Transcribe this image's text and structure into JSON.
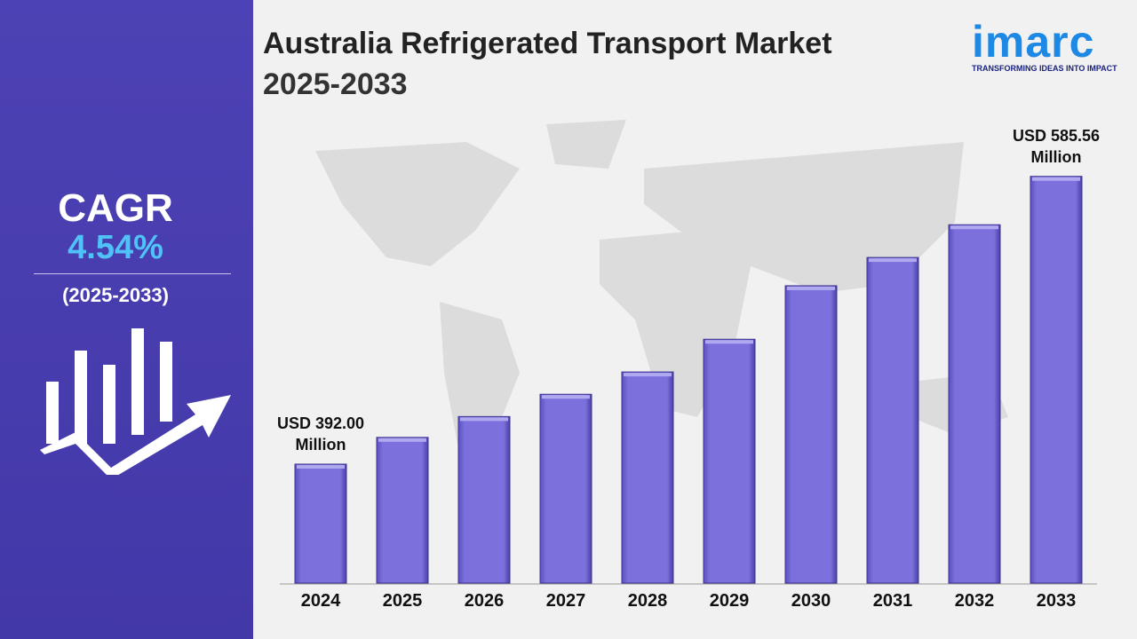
{
  "chart_data": {
    "type": "bar",
    "title": "Australia Refrigerated Transport Market",
    "subtitle": "2025-2033",
    "categories": [
      "2024",
      "2025",
      "2026",
      "2027",
      "2028",
      "2029",
      "2030",
      "2031",
      "2032",
      "2033"
    ],
    "values": [
      392.0,
      410,
      424,
      439,
      454,
      476,
      512,
      531,
      553,
      585.56
    ],
    "value_labels": [
      "USD 392.00 Million",
      null,
      null,
      null,
      null,
      null,
      null,
      null,
      null,
      "USD 585.56 Million"
    ],
    "color": "#7b70dc",
    "ylim": [
      312,
      620
    ]
  },
  "sidebar": {
    "label": "CAGR",
    "value": "4.54%",
    "period": "(2025-2033)"
  },
  "logo": {
    "name": "imarc",
    "tagline": "TRANSFORMING IDEAS INTO IMPACT"
  }
}
